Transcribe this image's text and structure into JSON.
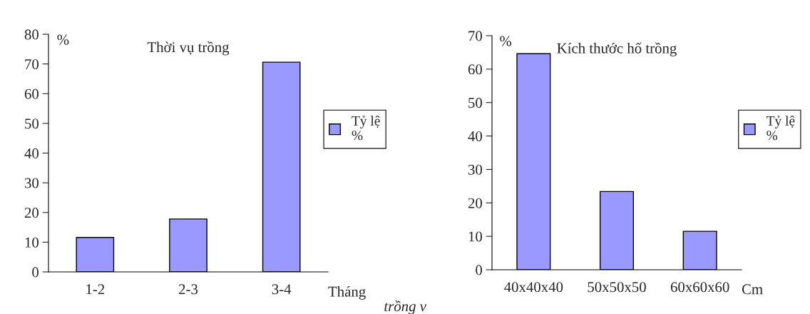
{
  "chart_data": [
    {
      "type": "bar",
      "title": "Thời vụ trồng",
      "xlabel": "Tháng",
      "ylabel": "%",
      "categories": [
        "1-2",
        "2-3",
        "3-4"
      ],
      "series": [
        {
          "name": "Tỷ lệ\n%",
          "color": "#9999ff",
          "values": [
            11.6,
            17.8,
            70.6
          ]
        }
      ],
      "ylim": [
        0,
        80
      ],
      "yticks": [
        0,
        10,
        20,
        30,
        40,
        50,
        60,
        70,
        80
      ],
      "legend": "right",
      "grid": false,
      "annotations": [
        "trồng v"
      ]
    },
    {
      "type": "bar",
      "title": "Kích thước hố trồng",
      "xlabel": "Cm",
      "ylabel": "%",
      "categories": [
        "40x40x40",
        "50x50x50",
        "60x60x60"
      ],
      "series": [
        {
          "name": "Tỷ lệ\n%",
          "color": "#9999ff",
          "values": [
            64.6,
            23.4,
            11.5
          ]
        }
      ],
      "ylim": [
        0,
        70
      ],
      "yticks": [
        0,
        10,
        20,
        30,
        40,
        50,
        60,
        70
      ],
      "legend": "right",
      "grid": false
    }
  ]
}
